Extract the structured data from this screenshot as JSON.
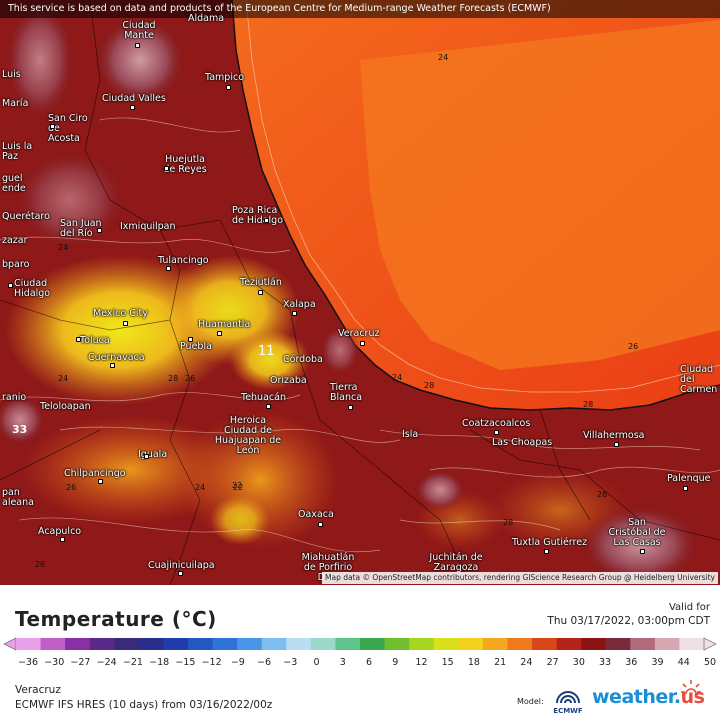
{
  "banner": "This service is based on data and products of the European Centre for Medium-range Weather Forecasts (ECMWF)",
  "attribution": "Map data © OpenStreetMap contributors, rendering GIScience Research Group @ Heidelberg University",
  "cities": [
    {
      "name": "Aldama"
    },
    {
      "name": "Ciudad Mante"
    },
    {
      "name": "Tampico"
    },
    {
      "name": "Luis"
    },
    {
      "name": "María"
    },
    {
      "name": "Ciudad Valles"
    },
    {
      "name": "San Ciro de Acosta"
    },
    {
      "name": "Luis la Paz"
    },
    {
      "name": "Huejutla de Reyes"
    },
    {
      "name": "guel ende"
    },
    {
      "name": "Poza Rica de Hidalgo"
    },
    {
      "name": "Querétaro"
    },
    {
      "name": "San Juan del Río"
    },
    {
      "name": "Ixmiquilpan"
    },
    {
      "name": "zazar"
    },
    {
      "name": "Tulancingo"
    },
    {
      "name": "Ciudad Hidalgo"
    },
    {
      "name": "Teziutlán"
    },
    {
      "name": "Xalapa"
    },
    {
      "name": "Mexico City"
    },
    {
      "name": "Huamantla"
    },
    {
      "name": "Toluca"
    },
    {
      "name": "Puebla"
    },
    {
      "name": "Cuernavaca"
    },
    {
      "name": "Veracruz"
    },
    {
      "name": "Córdoba"
    },
    {
      "name": "Orizaba"
    },
    {
      "name": "Tierra Blanca"
    },
    {
      "name": "Teloloapan"
    },
    {
      "name": "Tehuacán"
    },
    {
      "name": "Heroica Ciudad de Huajuapan de León"
    },
    {
      "name": "Coatzacoalcos"
    },
    {
      "name": "Las Choapas"
    },
    {
      "name": "Villahermosa"
    },
    {
      "name": "Isla"
    },
    {
      "name": "Iguala"
    },
    {
      "name": "Chilpancingo"
    },
    {
      "name": "Oaxaca"
    },
    {
      "name": "Palenque"
    },
    {
      "name": "San Cristóbal de Las Casas"
    },
    {
      "name": "Acapulco"
    },
    {
      "name": "Cuajinicuilapa"
    },
    {
      "name": "Miahuatlán de Porfirio Díaz"
    },
    {
      "name": "Juchitán de Zaragoza"
    },
    {
      "name": "Tuxtla Gutiérrez"
    },
    {
      "name": "Ciudad del Carmen"
    },
    {
      "name": "bparo"
    },
    {
      "name": "ranio"
    },
    {
      "name": "pan aleana"
    }
  ],
  "contour_labels": [
    "24",
    "26",
    "24",
    "24",
    "22",
    "28",
    "26",
    "24",
    "28",
    "28",
    "28",
    "22",
    "26",
    "33",
    "24",
    "28",
    "26",
    "11"
  ],
  "legend": {
    "title": "Temperature (°C)",
    "valid_label": "Valid for",
    "valid_time": "Thu 03/17/2022, 03:00pm CDT",
    "ticks": [
      "−36",
      "−30",
      "−27",
      "−24",
      "−21",
      "−18",
      "−15",
      "−12",
      "−9",
      "−6",
      "−3",
      "0",
      "3",
      "6",
      "9",
      "12",
      "15",
      "18",
      "21",
      "24",
      "27",
      "30",
      "33",
      "36",
      "39",
      "44",
      "50"
    ],
    "colors": [
      "#e8a0e8",
      "#c25ec8",
      "#8a2fa8",
      "#5a2a8a",
      "#3a2a7a",
      "#2a2d8c",
      "#1f3da8",
      "#2457c2",
      "#2e74d8",
      "#4a95e8",
      "#7fbdf0",
      "#b9def4",
      "#9ad9c7",
      "#5fc48c",
      "#3aa84e",
      "#6fbe2c",
      "#a8d422",
      "#d8e21a",
      "#f2d21c",
      "#f5a81e",
      "#ee7a1c",
      "#d8481a",
      "#b22418",
      "#8a1414",
      "#7a2a3a",
      "#b06a7a",
      "#d8a8b2",
      "#eee0e4"
    ]
  },
  "footer": {
    "location": "Veracruz",
    "model_info": "ECMWF IFS HRES (10 days) from 03/16/2022/00z",
    "model_label": "Model:",
    "ecmwf_logo": "ECMWF",
    "brand": "weather.",
    "brand_suffix": "us"
  }
}
